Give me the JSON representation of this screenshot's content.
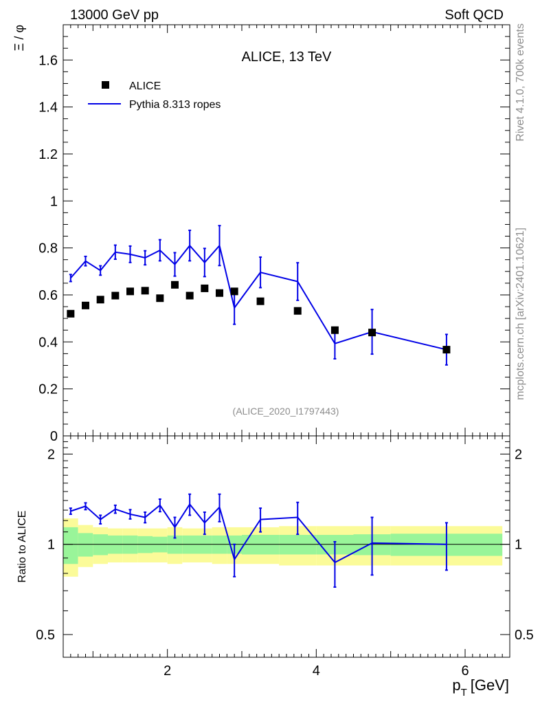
{
  "header": {
    "left": "13000 GeV pp",
    "right": "Soft QCD"
  },
  "side": {
    "rivet": "Rivet 4.1.0,  700k events",
    "mcplots": "mcplots.cern.ch [arXiv:2401.10621]"
  },
  "chart_data": {
    "type": "scatter",
    "title": "ALICE, 13 TeV",
    "analysis_id": "(ALICE_2020_I1797443)",
    "xlabel_main": "p",
    "xlabel_sub": "T",
    "xlabel_unit": "[GeV]",
    "ylabel": "Ξ / φ",
    "ratio_ylabel": "Ratio to ALICE",
    "xlim": [
      0.6,
      6.6
    ],
    "ylim": [
      0,
      1.75
    ],
    "ratio_ylim": [
      0.42,
      2.3
    ],
    "x_ticks": [
      "2",
      "4",
      "6"
    ],
    "y_ticks": [
      "0",
      "0.2",
      "0.4",
      "0.6",
      "0.8",
      "1",
      "1.2",
      "1.4",
      "1.6"
    ],
    "ratio_ticks_left": [
      "0.5",
      "1",
      "2"
    ],
    "ratio_ticks_right": [
      "0.5",
      "1",
      "2"
    ],
    "legend": {
      "data_label": "ALICE",
      "mc_label": "Pythia 8.313 ropes",
      "placement": "top-left"
    },
    "x": [
      0.7,
      0.9,
      1.1,
      1.3,
      1.5,
      1.7,
      1.9,
      2.1,
      2.3,
      2.5,
      2.7,
      2.9,
      3.25,
      3.75,
      4.25,
      4.75,
      5.75
    ],
    "bins": [
      [
        0.6,
        0.8
      ],
      [
        0.8,
        1.0
      ],
      [
        1.0,
        1.2
      ],
      [
        1.2,
        1.4
      ],
      [
        1.4,
        1.6
      ],
      [
        1.6,
        1.8
      ],
      [
        1.8,
        2.0
      ],
      [
        2.0,
        2.2
      ],
      [
        2.2,
        2.4
      ],
      [
        2.4,
        2.6
      ],
      [
        2.6,
        2.8
      ],
      [
        2.8,
        3.0
      ],
      [
        3.0,
        3.5
      ],
      [
        3.5,
        4.0
      ],
      [
        4.0,
        4.5
      ],
      [
        4.5,
        5.0
      ],
      [
        5.0,
        6.5
      ]
    ],
    "series": [
      {
        "name": "ALICE",
        "color": "#000000",
        "values": [
          0.52,
          0.555,
          0.58,
          0.597,
          0.615,
          0.618,
          0.586,
          0.643,
          0.597,
          0.628,
          0.608,
          0.615,
          0.573,
          0.532,
          0.45,
          0.44,
          0.367
        ]
      },
      {
        "name": "Pythia 8.313 ropes",
        "color": "#0000e6",
        "values": [
          0.672,
          0.744,
          0.704,
          0.782,
          0.773,
          0.758,
          0.79,
          0.73,
          0.81,
          0.738,
          0.81,
          0.545,
          0.696,
          0.657,
          0.393,
          0.443,
          0.367
        ],
        "errors": [
          0.015,
          0.02,
          0.02,
          0.03,
          0.035,
          0.03,
          0.045,
          0.05,
          0.065,
          0.06,
          0.085,
          0.07,
          0.065,
          0.08,
          0.065,
          0.095,
          0.065
        ]
      }
    ],
    "ratio": {
      "values": [
        1.29,
        1.34,
        1.21,
        1.31,
        1.26,
        1.23,
        1.35,
        1.14,
        1.36,
        1.18,
        1.33,
        0.89,
        1.21,
        1.23,
        0.87,
        1.01,
        1.0
      ],
      "errors": [
        0.03,
        0.035,
        0.04,
        0.04,
        0.045,
        0.05,
        0.065,
        0.09,
        0.11,
        0.1,
        0.14,
        0.11,
        0.11,
        0.15,
        0.15,
        0.22,
        0.18
      ],
      "band_stat": [
        0.14,
        0.09,
        0.08,
        0.07,
        0.07,
        0.065,
        0.06,
        0.07,
        0.07,
        0.07,
        0.07,
        0.07,
        0.075,
        0.075,
        0.075,
        0.08,
        0.085
      ],
      "band_total": [
        0.22,
        0.16,
        0.14,
        0.13,
        0.13,
        0.13,
        0.13,
        0.14,
        0.13,
        0.13,
        0.14,
        0.14,
        0.14,
        0.15,
        0.15,
        0.15,
        0.15
      ]
    },
    "colors": {
      "stat_band": "#99f599",
      "total_band": "#fbfb99"
    }
  }
}
